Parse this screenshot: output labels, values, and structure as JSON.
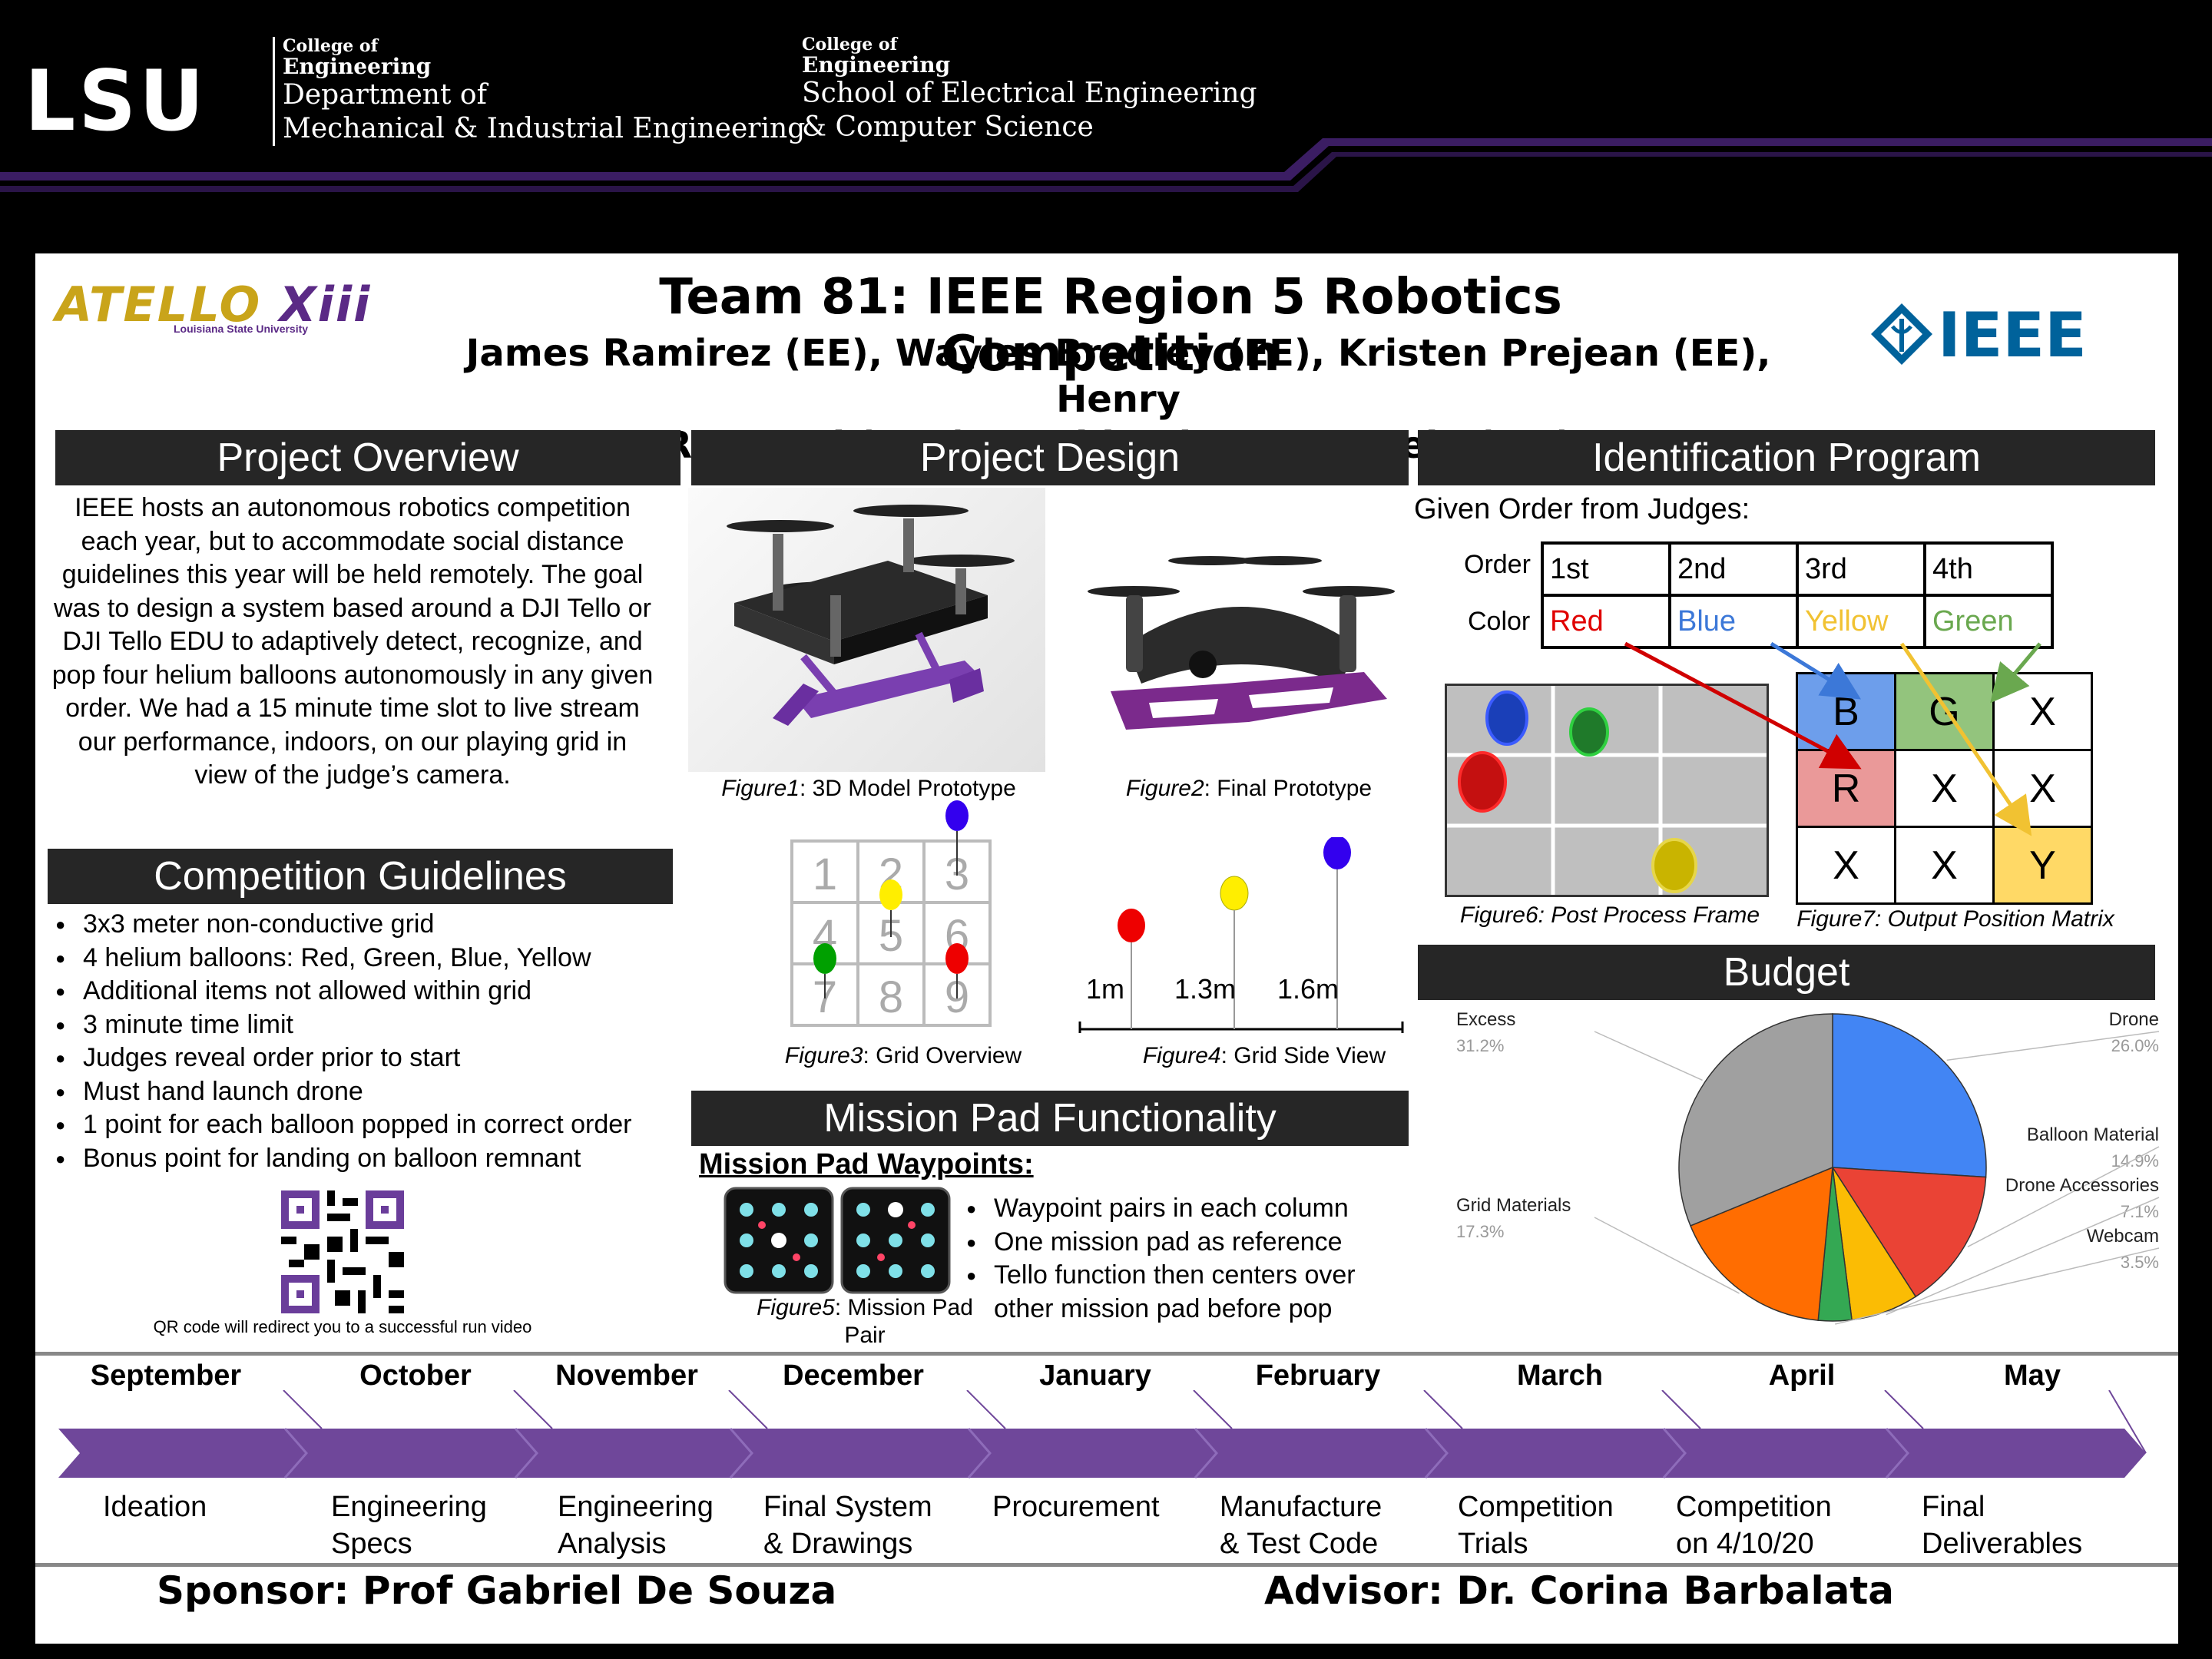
{
  "header": {
    "logo": "LSU",
    "block1": {
      "college": "College of",
      "college2": "Engineering",
      "dept1": "Department of",
      "dept2": "Mechanical & Industrial Engineering"
    },
    "block2": {
      "college": "College of",
      "college2": "Engineering",
      "dept1": "School of Electrical Engineering",
      "dept2": "& Computer Science"
    },
    "accent_color": "#3b1d63"
  },
  "poster": {
    "team_logo": {
      "main": "ATELLO ",
      "accent": "Xiii",
      "sub": "Louisiana State University"
    },
    "title": "Team 81: IEEE Region 5 Robotics Competition",
    "authors_line1": "James Ramirez (EE), Wayles Bradley (EE), Kristen Prejean (EE), Henry",
    "authors_line2": "Reynaud (ECE), David Selman-Housein (ME)",
    "ieee_logo": "IEEE"
  },
  "overview": {
    "heading": "Project Overview",
    "text": "IEEE hosts an autonomous robotics competition each year, but to accommodate social distance guidelines this year will be held remotely. The goal was to design a system based around a DJI Tello or DJI Tello EDU to adaptively detect, recognize, and pop four helium balloons autonomously in any given order. We had a 15 minute time slot to live stream our performance, indoors, on our playing grid in view of the judge’s camera."
  },
  "guidelines": {
    "heading": "Competition Guidelines",
    "items": [
      "3x3 meter non-conductive grid",
      "4 helium balloons: Red, Green, Blue, Yellow",
      "Additional items not allowed within grid",
      "3 minute time limit",
      "Judges reveal order prior to start",
      "Must hand launch drone",
      "1 point for each balloon popped in correct order",
      "Bonus point for landing on balloon remnant"
    ],
    "qr_caption": "QR code will redirect you to a successful run video"
  },
  "design": {
    "heading": "Project Design",
    "fig1": {
      "label": "Figure1",
      "caption": ": 3D Model Prototype"
    },
    "fig2": {
      "label": "Figure2",
      "caption": ": Final Prototype"
    },
    "fig3": {
      "label": "Figure3",
      "caption": ": Grid Overview",
      "cells": [
        "1",
        "2",
        "3",
        "4",
        "5",
        "6",
        "7",
        "8",
        "9"
      ]
    },
    "fig4": {
      "label": "Figure4",
      "caption": ": Grid Side View",
      "heights": [
        "1m",
        "1.3m",
        "1.6m"
      ]
    }
  },
  "mission": {
    "heading": "Mission Pad Functionality",
    "subheading": "Mission Pad Waypoints:",
    "items": [
      "Waypoint pairs in each column",
      "One mission pad as reference",
      "Tello function then centers over other mission pad before pop"
    ],
    "fig5": {
      "label": "Figure5",
      "caption": ": Mission Pad Pair"
    }
  },
  "identification": {
    "heading": "Identification Program",
    "given": "Given Order from Judges:",
    "order_label": "Order",
    "color_label": "Color",
    "orders": [
      "1st",
      "2nd",
      "3rd",
      "4th"
    ],
    "colors": [
      "Red",
      "Blue",
      "Yellow",
      "Green"
    ],
    "color_hex": [
      "#e00000",
      "#3c78d8",
      "#f1c232",
      "#6aa84f"
    ],
    "matrix": [
      "B",
      "G",
      "X",
      "R",
      "X",
      "X",
      "X",
      "X",
      "Y"
    ],
    "fig6": {
      "label": "Figure6",
      "caption": ": Post Process Frame"
    },
    "fig7": {
      "label": "Figure7",
      "caption": ": Output Position Matrix"
    }
  },
  "budget": {
    "heading": "Budget",
    "chart_data": {
      "type": "pie",
      "slices": [
        {
          "name": "Drone",
          "value": 26.0,
          "label": "26.0%",
          "color": "#4285f4"
        },
        {
          "name": "Balloon Material",
          "value": 14.9,
          "label": "14.9%",
          "color": "#ea4335"
        },
        {
          "name": "Drone Accessories",
          "value": 7.1,
          "label": "7.1%",
          "color": "#fbbc04"
        },
        {
          "name": "Webcam",
          "value": 3.5,
          "label": "3.5%",
          "color": "#34a853"
        },
        {
          "name": "Grid Materials",
          "value": 17.3,
          "label": "17.3%",
          "color": "#ff6d01"
        },
        {
          "name": "Excess",
          "value": 31.2,
          "label": "31.2%",
          "color": "#a0a0a0"
        }
      ]
    }
  },
  "timeline": {
    "months": [
      "September",
      "October",
      "November",
      "December",
      "January",
      "February",
      "March",
      "April",
      "May"
    ],
    "phases": [
      [
        "Ideation"
      ],
      [
        "Engineering",
        "Specs"
      ],
      [
        "Engineering",
        "Analysis"
      ],
      [
        "Final System",
        "& Drawings"
      ],
      [
        "Procurement"
      ],
      [
        "Manufacture",
        "& Test Code"
      ],
      [
        "Competition",
        "Trials"
      ],
      [
        "Competition",
        "on 4/10/20"
      ],
      [
        "Final",
        "Deliverables"
      ]
    ],
    "arrow_color": "#6f479a"
  },
  "footer": {
    "sponsor": "Sponsor: Prof Gabriel De Souza",
    "advisor": "Advisor: Dr. Corina Barbalata"
  }
}
